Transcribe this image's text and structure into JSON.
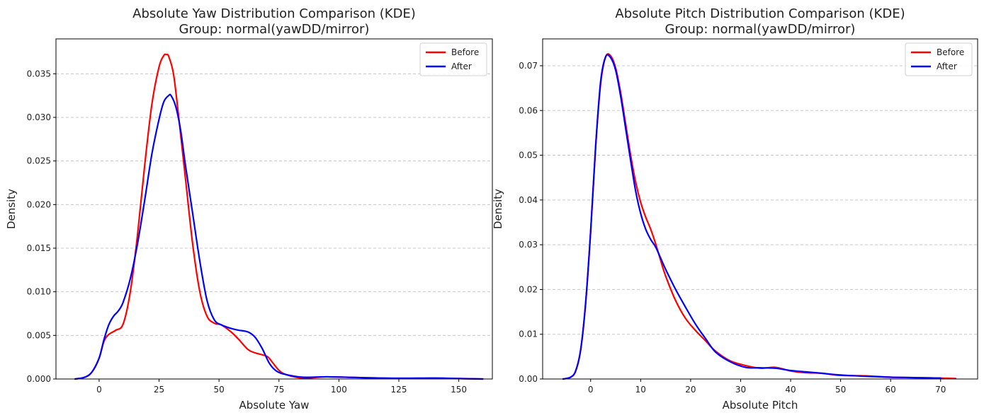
{
  "chart_data": [
    {
      "type": "line",
      "title": "Absolute Yaw Distribution Comparison (KDE)",
      "subtitle": "Group: normal(yawDD/mirror)",
      "xlabel": "Absolute Yaw",
      "ylabel": "Density",
      "xlim": [
        -18,
        164
      ],
      "ylim": [
        0,
        0.039
      ],
      "xticks": [
        0,
        25,
        50,
        75,
        100,
        125,
        150
      ],
      "yticks": [
        0.0,
        0.005,
        0.01,
        0.015,
        0.02,
        0.025,
        0.03,
        0.035
      ],
      "ytick_labels": [
        "0.000",
        "0.005",
        "0.010",
        "0.015",
        "0.020",
        "0.025",
        "0.030",
        "0.035"
      ],
      "grid": "y-dashed",
      "legend_position": "top-right",
      "series": [
        {
          "name": "Before",
          "color": "#ff0000",
          "x": [
            -10,
            -6,
            -3,
            0,
            2,
            4,
            7,
            10,
            13,
            16,
            19,
            22,
            25,
            27,
            28,
            29,
            31,
            33,
            36,
            39,
            42,
            45,
            48,
            51,
            55,
            58,
            62,
            65,
            70,
            72,
            75,
            78,
            85,
            95,
            110,
            125,
            140,
            150,
            160
          ],
          "y": [
            0.0,
            0.0002,
            0.0008,
            0.0024,
            0.0043,
            0.0051,
            0.0056,
            0.0063,
            0.01,
            0.0165,
            0.0245,
            0.0315,
            0.0358,
            0.0371,
            0.0372,
            0.037,
            0.035,
            0.0305,
            0.023,
            0.0155,
            0.01,
            0.0072,
            0.0064,
            0.0062,
            0.0054,
            0.0046,
            0.0034,
            0.003,
            0.0026,
            0.002,
            0.001,
            0.0005,
            0.0001,
            0.00025,
            0.00015,
            8e-05,
            0.0001,
            5e-05,
            0.0
          ]
        },
        {
          "name": "After",
          "color": "#0000ff",
          "x": [
            -10,
            -6,
            -3,
            0,
            2,
            4,
            6,
            8,
            10,
            13,
            16,
            19,
            22,
            25,
            27,
            29,
            30,
            32,
            34,
            36,
            39,
            42,
            45,
            48,
            51,
            55,
            58,
            62,
            65,
            68,
            71,
            74,
            78,
            85,
            95,
            110,
            125,
            140,
            150,
            160
          ],
          "y": [
            0.0,
            0.0002,
            0.0008,
            0.0024,
            0.0045,
            0.0062,
            0.0072,
            0.0078,
            0.0088,
            0.0115,
            0.0155,
            0.0205,
            0.0258,
            0.0298,
            0.0318,
            0.0325,
            0.0325,
            0.0312,
            0.0285,
            0.0245,
            0.019,
            0.0135,
            0.009,
            0.0068,
            0.0062,
            0.0058,
            0.0056,
            0.0054,
            0.0048,
            0.0035,
            0.0018,
            0.0009,
            0.0005,
            0.0002,
            0.00025,
            0.00015,
            8e-05,
            0.0001,
            5e-05,
            0.0
          ]
        }
      ]
    },
    {
      "type": "line",
      "title": "Absolute Pitch Distribution Comparison (KDE)",
      "subtitle": "Group: normal(yawDD/mirror)",
      "xlabel": "Absolute Pitch",
      "ylabel": "Density",
      "xlim": [
        -9.6,
        77.4
      ],
      "ylim": [
        0,
        0.076
      ],
      "xticks": [
        0,
        10,
        20,
        30,
        40,
        50,
        60,
        70
      ],
      "yticks": [
        0.0,
        0.01,
        0.02,
        0.03,
        0.04,
        0.05,
        0.06,
        0.07
      ],
      "ytick_labels": [
        "0.00",
        "0.01",
        "0.02",
        "0.03",
        "0.04",
        "0.05",
        "0.06",
        "0.07"
      ],
      "grid": "y-dashed",
      "legend_position": "top-right",
      "series": [
        {
          "name": "Before",
          "color": "#ff0000",
          "x": [
            -5.5,
            -4,
            -3,
            -2,
            -1,
            0,
            1,
            2,
            3,
            4,
            5,
            6,
            7,
            8,
            9,
            10,
            11,
            12,
            13,
            14,
            15,
            17,
            19,
            21,
            23,
            25,
            28,
            31,
            34,
            37,
            40,
            43,
            46,
            50,
            55,
            60,
            65,
            70,
            73
          ],
          "y": [
            0.0,
            0.0004,
            0.0018,
            0.0065,
            0.017,
            0.033,
            0.052,
            0.066,
            0.072,
            0.0722,
            0.0695,
            0.064,
            0.057,
            0.05,
            0.044,
            0.0395,
            0.0362,
            0.0335,
            0.0302,
            0.0265,
            0.023,
            0.0175,
            0.0135,
            0.0108,
            0.0085,
            0.0062,
            0.004,
            0.003,
            0.0024,
            0.0026,
            0.0018,
            0.0014,
            0.0013,
            0.0008,
            0.0007,
            0.0004,
            0.0003,
            0.0002,
            0.0001
          ]
        },
        {
          "name": "After",
          "color": "#0000ff",
          "x": [
            -5.5,
            -4,
            -3,
            -2,
            -1,
            0,
            1,
            2,
            3,
            4,
            5,
            6,
            7,
            8,
            9,
            10,
            11,
            12,
            13,
            14,
            15,
            17,
            19,
            21,
            23,
            25,
            28,
            31,
            34,
            37,
            40,
            43,
            46,
            50,
            55,
            60,
            65,
            70
          ],
          "y": [
            0.0,
            0.0004,
            0.0018,
            0.0065,
            0.017,
            0.033,
            0.052,
            0.0665,
            0.072,
            0.0718,
            0.069,
            0.0632,
            0.056,
            0.0488,
            0.042,
            0.037,
            0.0335,
            0.0312,
            0.0295,
            0.027,
            0.0245,
            0.02,
            0.016,
            0.0122,
            0.009,
            0.006,
            0.0038,
            0.0026,
            0.0025,
            0.0024,
            0.0019,
            0.0016,
            0.0013,
            0.0009,
            0.0006,
            0.0004,
            0.0003,
            0.0002
          ]
        }
      ]
    }
  ]
}
